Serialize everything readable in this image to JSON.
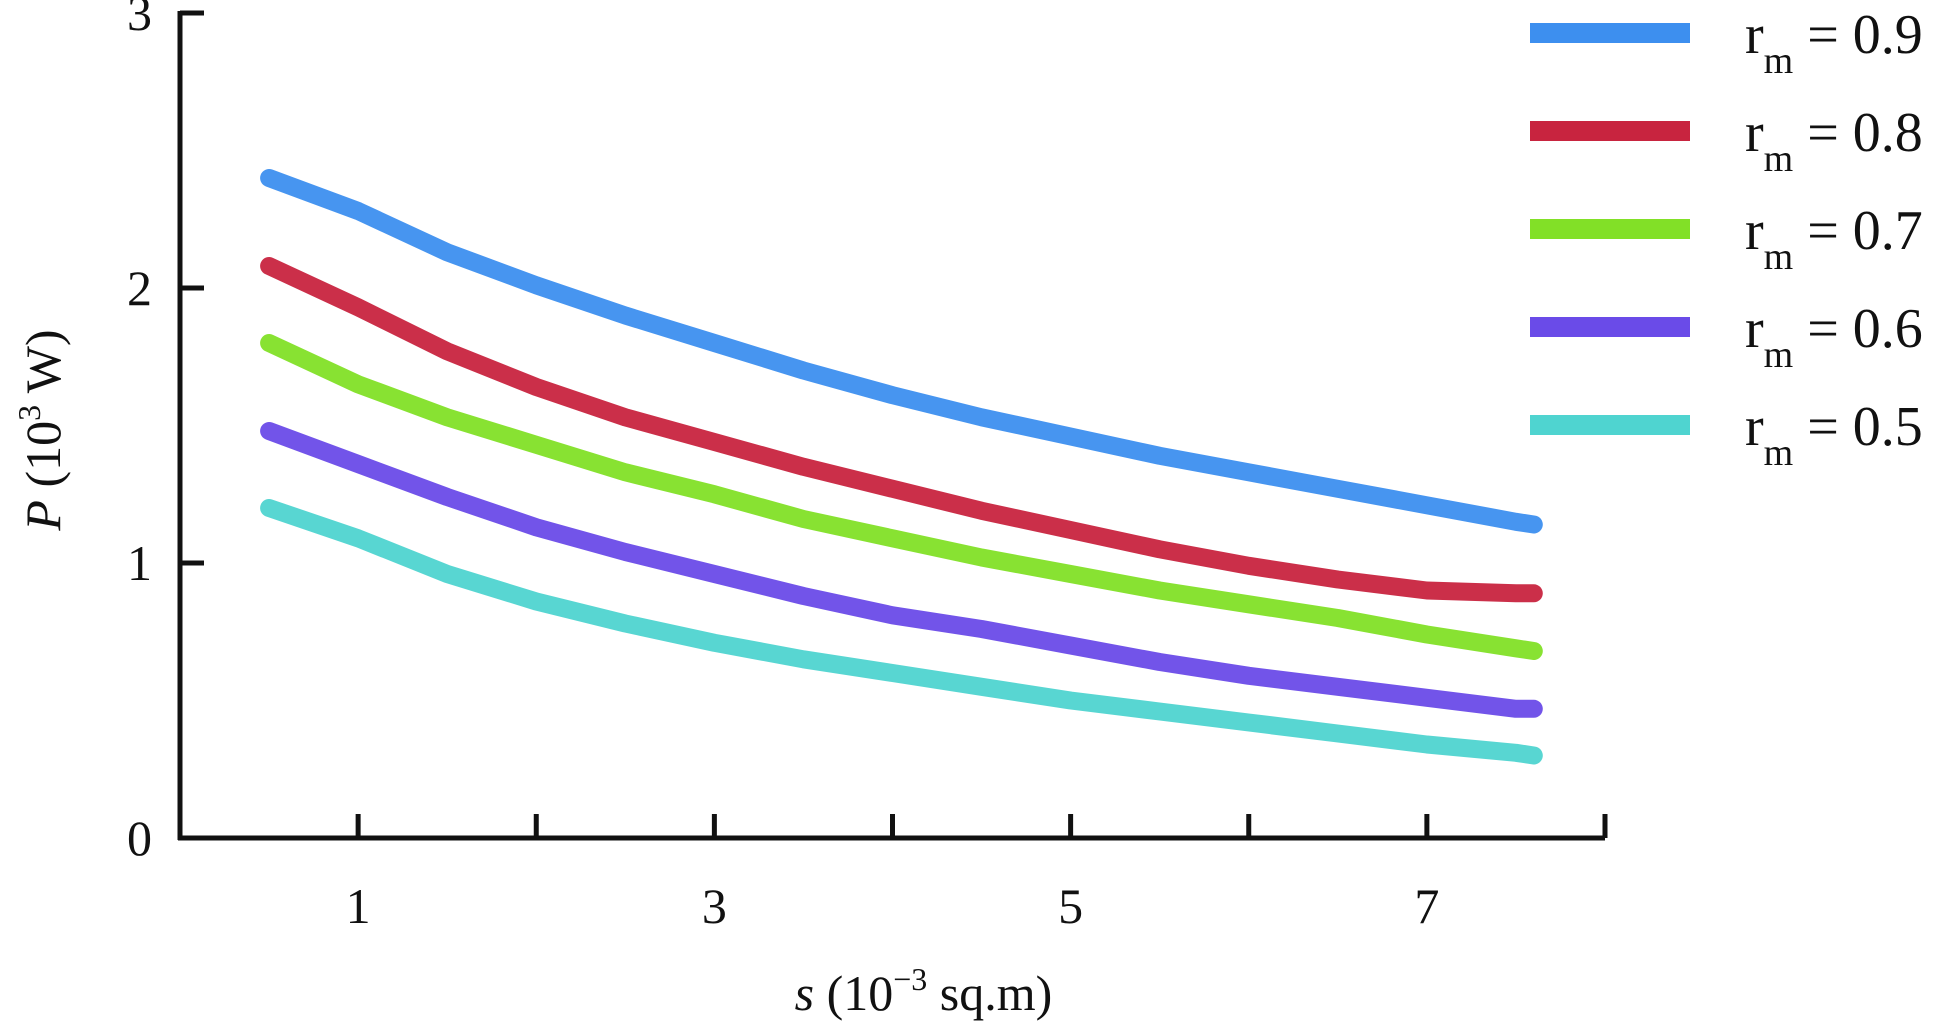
{
  "chart_data": {
    "type": "line",
    "xlabel": {
      "var": "s",
      "prefix": " (10",
      "exp": "−3",
      "suffix": " sq.m)"
    },
    "ylabel": {
      "var": "P",
      "prefix": " (10",
      "exp": "3",
      "suffix": " W)"
    },
    "xlim": [
      0,
      8
    ],
    "ylim": [
      0,
      3
    ],
    "xticks": [
      1,
      2,
      3,
      4,
      5,
      6,
      7,
      8
    ],
    "xtick_labels": [
      "1",
      "",
      "3",
      "",
      "5",
      "",
      "7",
      ""
    ],
    "yticks": [
      0,
      1,
      2,
      3
    ],
    "ytick_labels": [
      "0",
      "1",
      "2",
      "3"
    ],
    "grid": false,
    "legend_position": "top-right",
    "x": [
      0.5,
      1,
      1.5,
      2,
      2.5,
      3,
      3.5,
      4,
      4.5,
      5,
      5.5,
      6,
      6.5,
      7,
      7.5,
      7.6
    ],
    "series": [
      {
        "name": "r",
        "sub": "m",
        "value_label": " = 0.9",
        "color": "#3d8fef",
        "values": [
          2.4,
          2.28,
          2.13,
          2.01,
          1.9,
          1.8,
          1.7,
          1.61,
          1.53,
          1.46,
          1.39,
          1.33,
          1.27,
          1.21,
          1.15,
          1.14
        ]
      },
      {
        "name": "r",
        "sub": "m",
        "value_label": " = 0.8",
        "color": "#c8243f",
        "values": [
          2.08,
          1.93,
          1.77,
          1.64,
          1.53,
          1.44,
          1.35,
          1.27,
          1.19,
          1.12,
          1.05,
          0.99,
          0.94,
          0.9,
          0.89,
          0.89
        ]
      },
      {
        "name": "r",
        "sub": "m",
        "value_label": " = 0.7",
        "color": "#82e027",
        "values": [
          1.8,
          1.65,
          1.53,
          1.43,
          1.33,
          1.25,
          1.16,
          1.09,
          1.02,
          0.96,
          0.9,
          0.85,
          0.8,
          0.74,
          0.69,
          0.68
        ]
      },
      {
        "name": "r",
        "sub": "m",
        "value_label": " = 0.6",
        "color": "#6a4be8",
        "values": [
          1.48,
          1.36,
          1.24,
          1.13,
          1.04,
          0.96,
          0.88,
          0.81,
          0.76,
          0.7,
          0.64,
          0.59,
          0.55,
          0.51,
          0.47,
          0.47
        ]
      },
      {
        "name": "r",
        "sub": "m",
        "value_label": " = 0.5",
        "color": "#4fd4d0",
        "values": [
          1.2,
          1.09,
          0.96,
          0.86,
          0.78,
          0.71,
          0.65,
          0.6,
          0.55,
          0.5,
          0.46,
          0.42,
          0.38,
          0.34,
          0.31,
          0.3
        ]
      }
    ]
  }
}
